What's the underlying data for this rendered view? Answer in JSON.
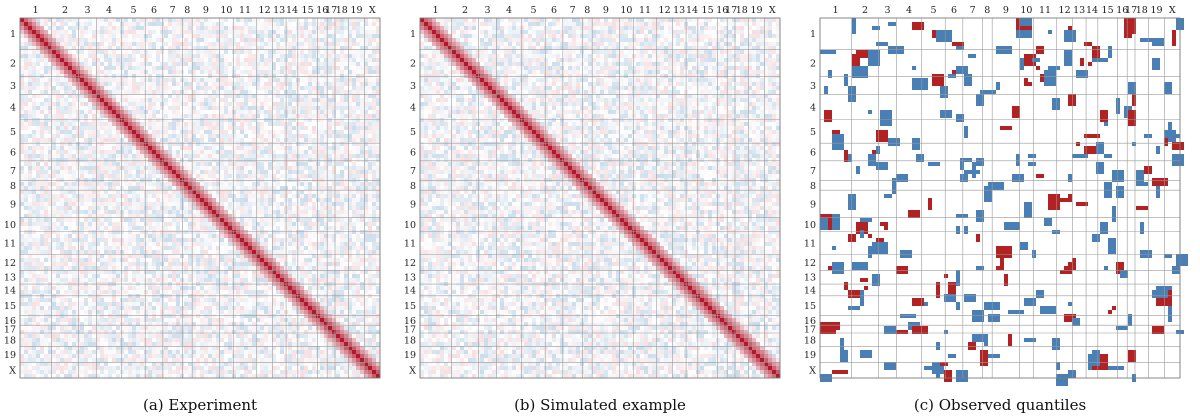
{
  "chromosome_labels": [
    "1",
    "2",
    "3",
    "4",
    "5",
    "6",
    "7",
    "8",
    "9",
    "10",
    "11",
    "12",
    "13",
    "14",
    "15",
    "16",
    "17",
    "18",
    "19",
    "X"
  ],
  "chart_data": [
    {
      "type": "heatmap",
      "id": "experiment",
      "caption": "(a) Experiment",
      "variant": "correlation",
      "colors": {
        "positive": "#b2182b",
        "negative": "#4682b4",
        "zero": "#ffffff"
      }
    },
    {
      "type": "heatmap",
      "id": "simulated",
      "caption": "(b) Simulated example",
      "variant": "correlation",
      "colors": {
        "positive": "#b2182b",
        "negative": "#4682b4",
        "zero": "#ffffff"
      }
    },
    {
      "type": "heatmap",
      "id": "quantiles",
      "caption": "(c) Observed quantiles",
      "variant": "binary",
      "colors": {
        "high": "#b22222",
        "low": "#4a7fb5",
        "zero": "#ffffff"
      },
      "grid": true
    }
  ]
}
